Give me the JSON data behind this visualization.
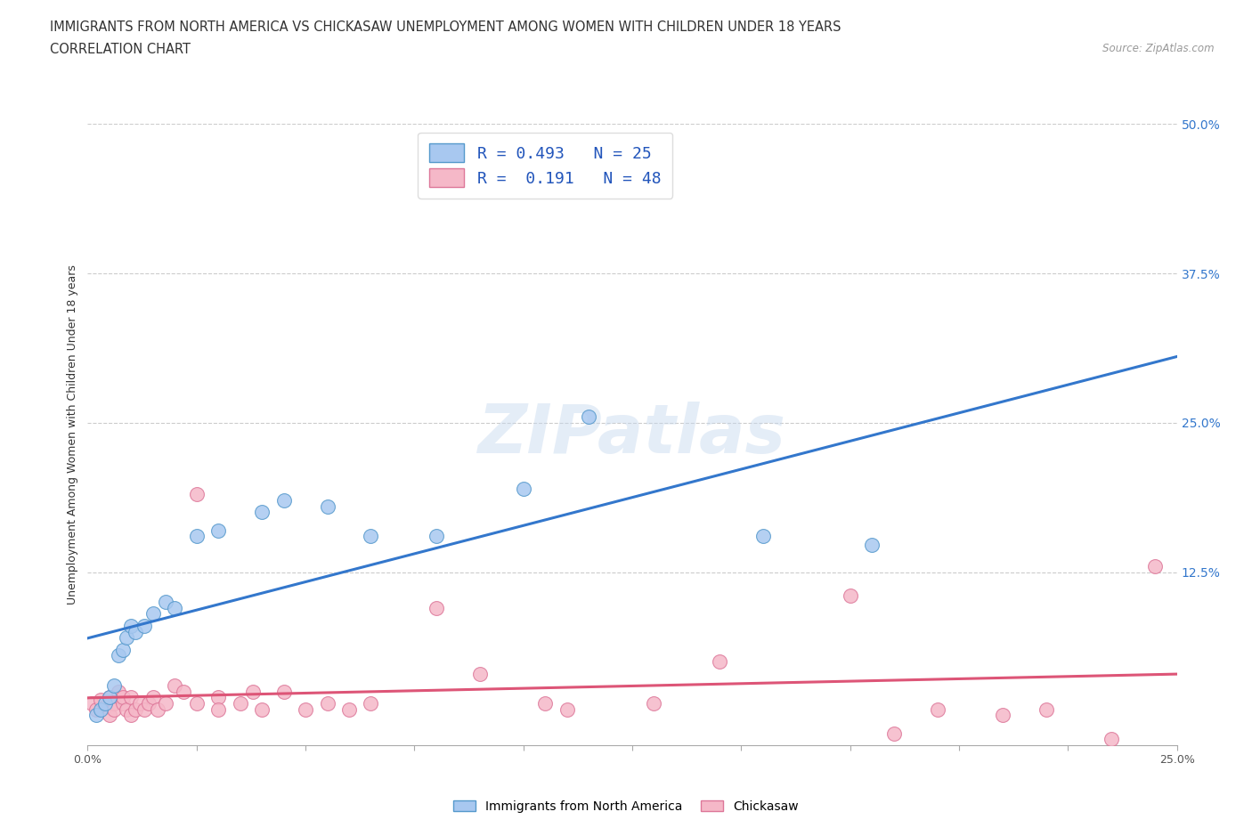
{
  "title_line1": "IMMIGRANTS FROM NORTH AMERICA VS CHICKASAW UNEMPLOYMENT AMONG WOMEN WITH CHILDREN UNDER 18 YEARS",
  "title_line2": "CORRELATION CHART",
  "source_text": "Source: ZipAtlas.com",
  "ylabel": "Unemployment Among Women with Children Under 18 years",
  "xlim": [
    0.0,
    0.25
  ],
  "ylim": [
    -0.02,
    0.5
  ],
  "yticks": [
    0.0,
    0.125,
    0.25,
    0.375,
    0.5
  ],
  "ytick_labels": [
    "",
    "12.5%",
    "25.0%",
    "37.5%",
    "50.0%"
  ],
  "xticks": [
    0.0,
    0.025,
    0.05,
    0.075,
    0.1,
    0.125,
    0.15,
    0.175,
    0.2,
    0.225,
    0.25
  ],
  "xtick_labels": [
    "0.0%",
    "",
    "",
    "",
    "",
    "",
    "",
    "",
    "",
    "",
    "25.0%"
  ],
  "blue_R": 0.493,
  "blue_N": 25,
  "pink_R": 0.191,
  "pink_N": 48,
  "blue_color": "#a8c8f0",
  "blue_edge_color": "#5599cc",
  "pink_color": "#f5b8c8",
  "pink_edge_color": "#dd7799",
  "blue_line_color": "#3377cc",
  "pink_line_color": "#dd5577",
  "legend_label_blue": "Immigrants from North America",
  "legend_label_pink": "Chickasaw",
  "watermark": "ZIPatlas",
  "blue_x": [
    0.002,
    0.003,
    0.004,
    0.005,
    0.006,
    0.007,
    0.008,
    0.009,
    0.01,
    0.011,
    0.013,
    0.015,
    0.018,
    0.02,
    0.025,
    0.03,
    0.04,
    0.045,
    0.055,
    0.065,
    0.08,
    0.1,
    0.115,
    0.155,
    0.18
  ],
  "blue_y": [
    0.005,
    0.01,
    0.015,
    0.02,
    0.03,
    0.055,
    0.06,
    0.07,
    0.08,
    0.075,
    0.08,
    0.09,
    0.1,
    0.095,
    0.155,
    0.16,
    0.175,
    0.185,
    0.18,
    0.155,
    0.155,
    0.195,
    0.255,
    0.155,
    0.148
  ],
  "pink_x": [
    0.001,
    0.002,
    0.003,
    0.004,
    0.005,
    0.005,
    0.006,
    0.006,
    0.007,
    0.008,
    0.008,
    0.009,
    0.01,
    0.01,
    0.011,
    0.012,
    0.013,
    0.014,
    0.015,
    0.016,
    0.018,
    0.02,
    0.022,
    0.025,
    0.025,
    0.03,
    0.03,
    0.035,
    0.038,
    0.04,
    0.045,
    0.05,
    0.055,
    0.06,
    0.065,
    0.08,
    0.09,
    0.105,
    0.11,
    0.13,
    0.145,
    0.175,
    0.185,
    0.195,
    0.21,
    0.22,
    0.235,
    0.245
  ],
  "pink_y": [
    0.015,
    0.01,
    0.018,
    0.012,
    0.02,
    0.005,
    0.015,
    0.01,
    0.025,
    0.015,
    0.02,
    0.01,
    0.02,
    0.005,
    0.01,
    0.015,
    0.01,
    0.015,
    0.02,
    0.01,
    0.015,
    0.03,
    0.025,
    0.19,
    0.015,
    0.02,
    0.01,
    0.015,
    0.025,
    0.01,
    0.025,
    0.01,
    0.015,
    0.01,
    0.015,
    0.095,
    0.04,
    0.015,
    0.01,
    0.015,
    0.05,
    0.105,
    -0.01,
    0.01,
    0.005,
    0.01,
    -0.015,
    0.13
  ],
  "background_color": "#ffffff",
  "grid_color": "#cccccc",
  "title_fontsize": 11,
  "axis_fontsize": 9,
  "tick_fontsize": 9,
  "right_tick_color": "#3377cc"
}
